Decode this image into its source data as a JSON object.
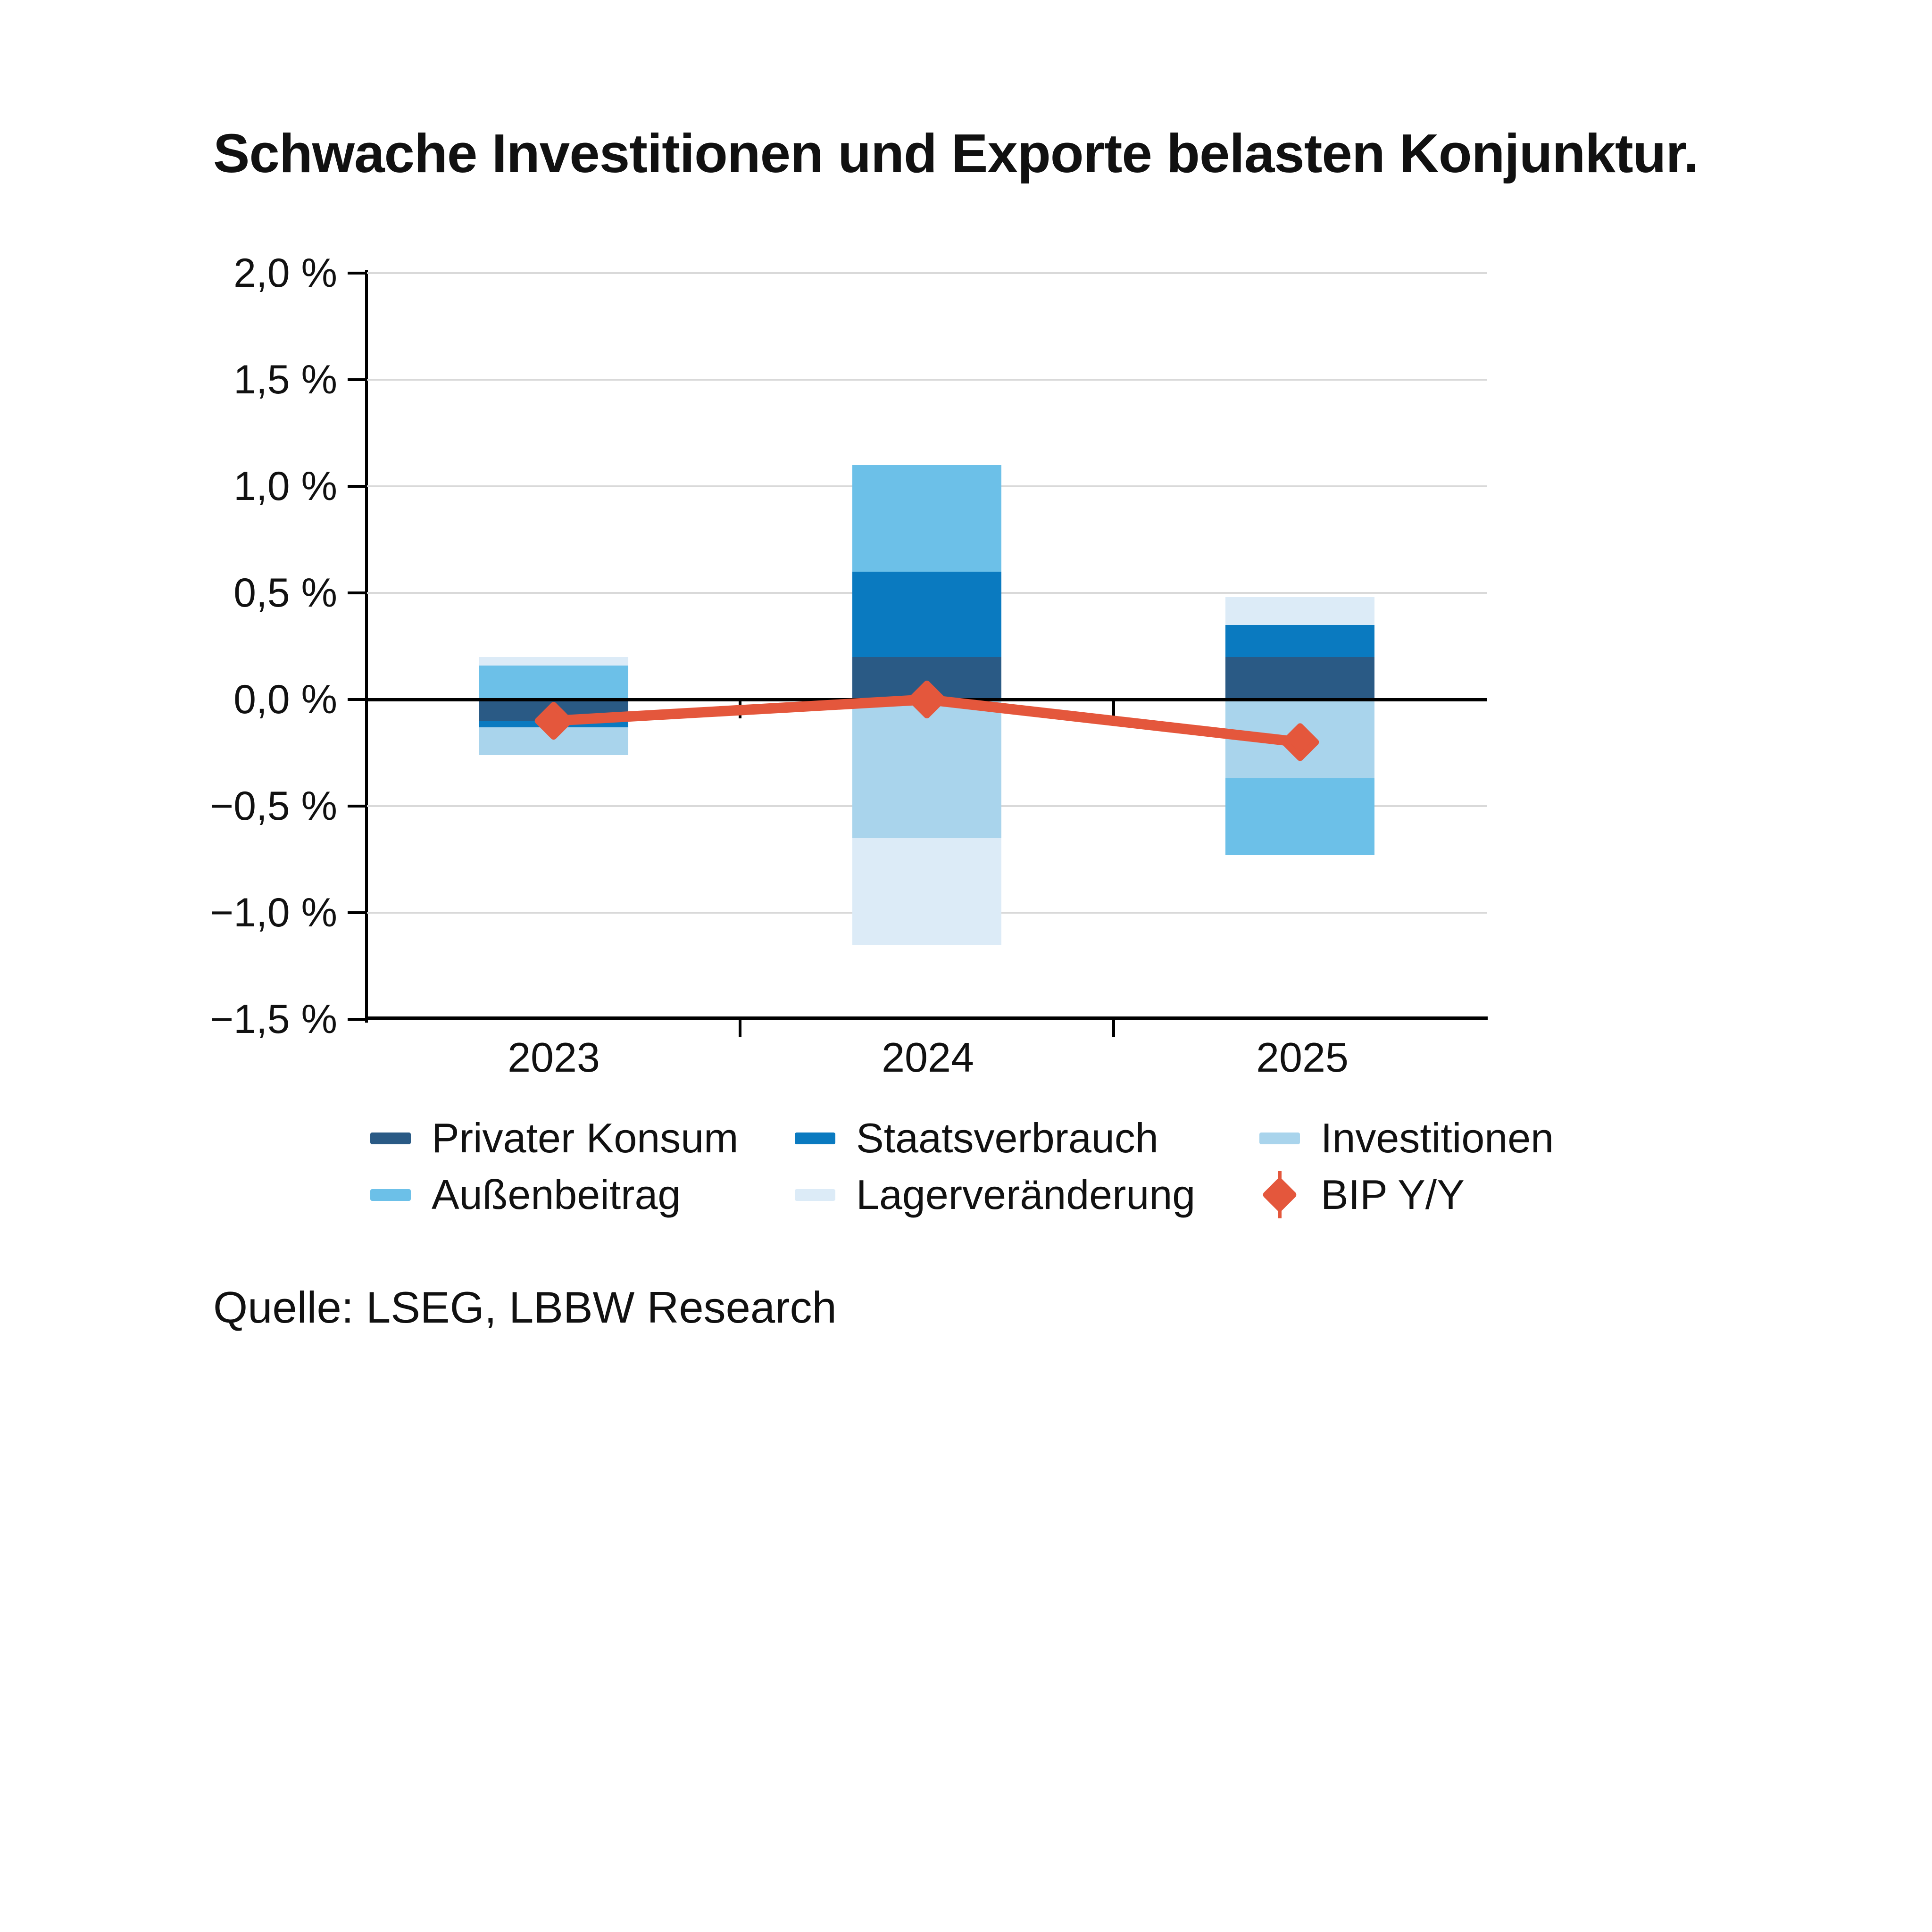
{
  "title": "Schwache Investitionen und Exporte belasten Konjunktur.",
  "source": "Quelle: LSEG, LBBW Research",
  "chart_data": {
    "type": "bar",
    "subtype": "stacked-bar-with-line",
    "title": "Schwache Investitionen und Exporte belasten Konjunktur.",
    "xlabel": "",
    "ylabel": "",
    "unit": "percentage points",
    "categories": [
      "2023",
      "2024",
      "2025"
    ],
    "series": [
      {
        "name": "Privater Konsum",
        "color": "#2a5a85",
        "values": [
          -0.1,
          0.2,
          0.2
        ]
      },
      {
        "name": "Staatsverbrauch",
        "color": "#0a7ac0",
        "values": [
          -0.03,
          0.4,
          0.15
        ]
      },
      {
        "name": "Investitionen",
        "color": "#a9d4ec",
        "values": [
          -0.13,
          -0.65,
          -0.37
        ]
      },
      {
        "name": "Außenbeitrag",
        "color": "#6cc0e8",
        "values": [
          0.16,
          0.5,
          -0.36
        ]
      },
      {
        "name": "Lagerveränderung",
        "color": "#dcebf7",
        "values": [
          0.04,
          -0.5,
          0.13
        ]
      }
    ],
    "line_series": {
      "name": "BIP Y/Y",
      "color": "#e4573c",
      "values": [
        -0.1,
        0.0,
        -0.2
      ]
    },
    "yticks": [
      {
        "label": "2,0 %",
        "value": 2.0
      },
      {
        "label": "1,5 %",
        "value": 1.5
      },
      {
        "label": "1,0 %",
        "value": 1.0
      },
      {
        "label": "0,5 %",
        "value": 0.5
      },
      {
        "label": "0,0 %",
        "value": 0.0
      },
      {
        "label": "−0,5 %",
        "value": -0.5
      },
      {
        "label": "−1,0 %",
        "value": -1.0
      },
      {
        "label": "−1,5 %",
        "value": -1.5
      }
    ],
    "ylim": [
      -1.5,
      2.0
    ],
    "grid": "horizontal",
    "grid_color": "#d9d9d9",
    "axis_color": "#000000",
    "text_color": "#111111",
    "legend_position": "bottom"
  }
}
